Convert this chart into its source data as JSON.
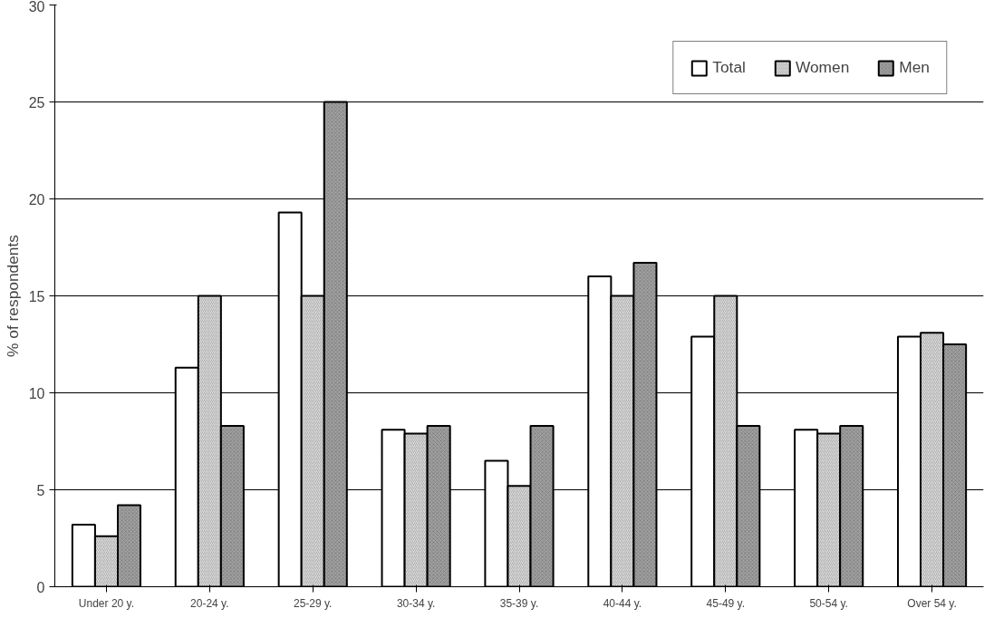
{
  "chart_data": {
    "type": "bar",
    "ylabel": "% of respondents",
    "categories": [
      "Under 20 y.",
      "20-24 y.",
      "25-29 y.",
      "30-34 y.",
      "35-39 y.",
      "40-44 y.",
      "45-49 y.",
      "50-54 y.",
      "Over 54 y."
    ],
    "series": [
      {
        "name": "Total",
        "color": "#ffffff",
        "values": [
          3.2,
          11.3,
          19.3,
          8.1,
          6.5,
          16.0,
          12.9,
          8.1,
          12.9
        ]
      },
      {
        "name": "Women",
        "color": "#dcdcdc",
        "values": [
          2.6,
          15.0,
          15.0,
          7.9,
          5.2,
          15.0,
          15.0,
          7.9,
          13.1
        ]
      },
      {
        "name": "Men",
        "color": "#a0a0a0",
        "values": [
          4.2,
          8.3,
          25.0,
          8.3,
          8.3,
          16.7,
          8.3,
          8.3,
          12.5
        ]
      }
    ],
    "ylim": [
      0,
      30
    ],
    "yticks": [
      0,
      5,
      10,
      15,
      20,
      25,
      30
    ],
    "grid": "y",
    "legend": "top right"
  }
}
